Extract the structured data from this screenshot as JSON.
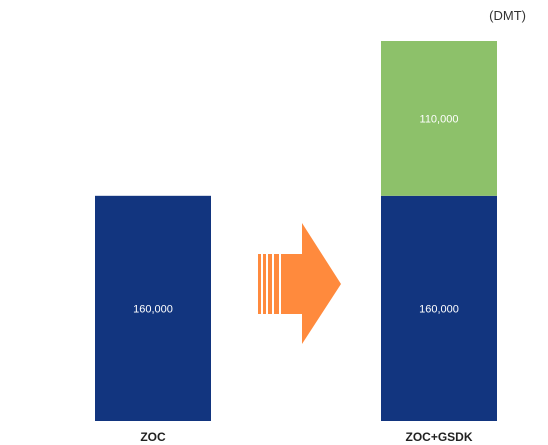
{
  "chart_data": {
    "type": "bar",
    "stacked": true,
    "unit": "(DMT)",
    "categories": [
      "ZOC",
      "ZOC+GSDK"
    ],
    "series": [
      {
        "values": [
          160000,
          160000
        ],
        "labels": [
          "160,000",
          "160,000"
        ],
        "color": "#12357f"
      },
      {
        "values": [
          0,
          110000
        ],
        "labels": [
          "",
          "110,000"
        ],
        "color": "#8dc16a"
      }
    ],
    "ylim": [
      0,
      270000
    ],
    "grid": false,
    "legend": "none",
    "arrow_color": "#ff8a3d"
  }
}
